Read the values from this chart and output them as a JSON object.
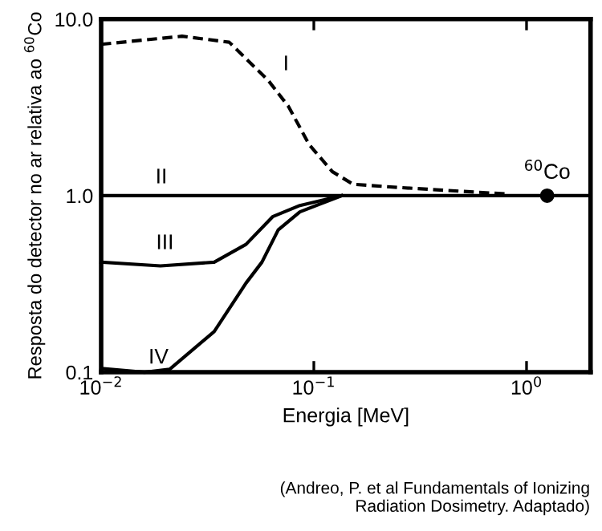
{
  "chart_data": {
    "type": "line",
    "xlabel": "Energia [MeV]",
    "ylabel": "Resposta do detector no ar relativa ao $^{60}$Co",
    "log": "xy",
    "xlim": [
      0.01,
      2
    ],
    "ylim": [
      0.1,
      10
    ],
    "xticks": [
      {
        "value": 0.01,
        "label": "10$^{−2}$"
      },
      {
        "value": 0.1,
        "label": "10$^{−1}$"
      },
      {
        "value": 1,
        "label": "10$^{0}$"
      }
    ],
    "yticks": [
      0.1,
      {
        "value": 1,
        "label": "1.0"
      },
      {
        "value": 10,
        "label": "10.0"
      }
    ],
    "grid": false,
    "legend": false,
    "series": [
      {
        "name": "I",
        "color": "#000000",
        "line_style": "dashed",
        "x": [
          0.01,
          0.024,
          0.04,
          0.061,
          0.076,
          0.095,
          0.122,
          0.153,
          0.258,
          0.83
        ],
        "values": [
          7.2,
          8.0,
          7.4,
          4.5,
          3.2,
          1.95,
          1.37,
          1.16,
          1.11,
          1.02
        ]
      },
      {
        "name": "II",
        "color": "#000000",
        "line_style": "solid",
        "x": [
          0.01,
          2
        ],
        "values": [
          1,
          1
        ]
      },
      {
        "name": "III",
        "color": "#000000",
        "line_style": "solid",
        "x": [
          0.01,
          0.019,
          0.034,
          0.048,
          0.064,
          0.086,
          0.135
        ],
        "values": [
          0.42,
          0.4,
          0.42,
          0.53,
          0.76,
          0.88,
          1.0
        ]
      },
      {
        "name": "IV",
        "color": "#000000",
        "line_style": "solid",
        "x": [
          0.01,
          0.016,
          0.021,
          0.034,
          0.048,
          0.057,
          0.068,
          0.086,
          0.135
        ],
        "values": [
          0.105,
          0.1,
          0.104,
          0.17,
          0.32,
          0.42,
          0.64,
          0.81,
          1.0
        ]
      },
      {
        "name": "$^{60}$Co",
        "type": "scatter",
        "color": "#000000",
        "marker": "circle",
        "x": [
          1.25
        ],
        "values": [
          1
        ]
      }
    ],
    "annotations": [
      "(Andreo, P. et al Fundamentals of Ionizing\nRadiation Dosimetry. Adaptado)"
    ]
  }
}
